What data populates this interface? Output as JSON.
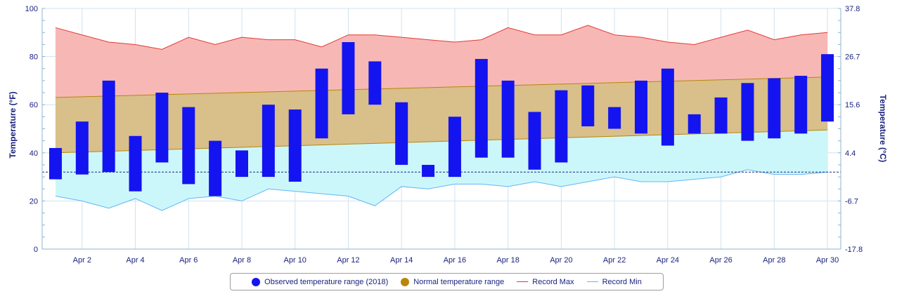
{
  "chart_data": {
    "type": "bar",
    "title": "",
    "xlabel": "",
    "ylabel": "Temperature (°F)",
    "ylabel_right": "Temperature (°C)",
    "ylim": [
      0,
      100
    ],
    "y_ticks": [
      0,
      20,
      40,
      60,
      80,
      100
    ],
    "y_ticks_right": [
      "-17.8",
      "-6.7",
      "4.4",
      "15.6",
      "26.7",
      "37.8"
    ],
    "x_tick_labels": [
      "Apr 2",
      "Apr 4",
      "Apr 6",
      "Apr 8",
      "Apr 10",
      "Apr 12",
      "Apr 14",
      "Apr 16",
      "Apr 18",
      "Apr 20",
      "Apr 22",
      "Apr 24",
      "Apr 26",
      "Apr 28",
      "Apr 30"
    ],
    "days": [
      1,
      2,
      3,
      4,
      5,
      6,
      7,
      8,
      9,
      10,
      11,
      12,
      13,
      14,
      15,
      16,
      17,
      18,
      19,
      20,
      21,
      22,
      23,
      24,
      25,
      26,
      27,
      28,
      29,
      30
    ],
    "freezing_line": 32,
    "grid": true,
    "legend_position": "bottom",
    "series": [
      {
        "name": "Observed temperature range (2018)",
        "color": "#1414f0",
        "low": [
          29,
          31,
          32,
          24,
          36,
          27,
          22,
          30,
          30,
          28,
          46,
          56,
          60,
          35,
          30,
          30,
          38,
          38,
          33,
          36,
          51,
          50,
          48,
          43,
          48,
          48,
          45,
          46,
          48,
          53
        ],
        "high": [
          42,
          53,
          70,
          47,
          65,
          59,
          45,
          41,
          60,
          58,
          75,
          86,
          78,
          61,
          35,
          55,
          79,
          70,
          57,
          66,
          68,
          59,
          70,
          75,
          56,
          63,
          69,
          71,
          72,
          81
        ]
      },
      {
        "name": "Normal temperature range",
        "color": "#b8860b",
        "low_start": 40,
        "low_end": 49.5,
        "high_start": 63,
        "high_end": 71.5
      },
      {
        "name": "Record Max",
        "color": "#e53935",
        "values": [
          92,
          89,
          86,
          85,
          83,
          88,
          85,
          88,
          87,
          87,
          84,
          89,
          89,
          88,
          87,
          86,
          87,
          92,
          89,
          89,
          93,
          89,
          88,
          86,
          85,
          88,
          91,
          87,
          89,
          90
        ]
      },
      {
        "name": "Record Min",
        "color": "#64b5f6",
        "values": [
          22,
          20,
          17,
          21,
          16,
          21,
          22,
          20,
          25,
          24,
          23,
          22,
          18,
          26,
          25,
          27,
          27,
          26,
          28,
          26,
          28,
          30,
          28,
          28,
          29,
          30,
          33,
          31,
          31,
          32
        ]
      }
    ]
  }
}
